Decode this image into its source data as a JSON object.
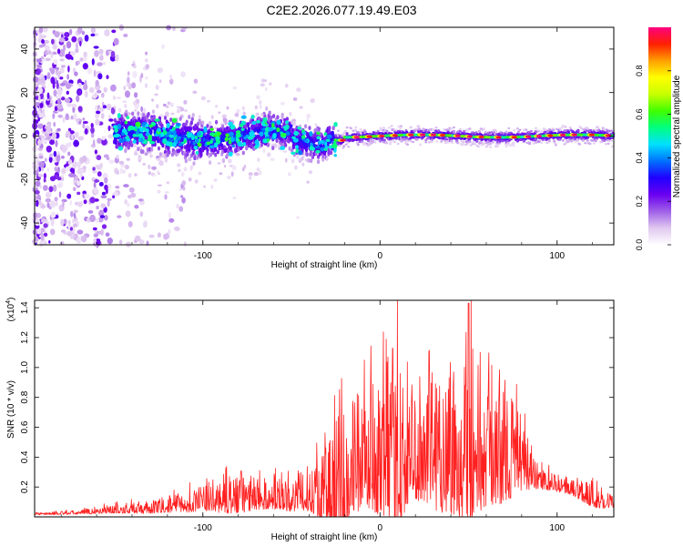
{
  "title": "C2E2.2026.077.19.49.E03",
  "chart_data": [
    {
      "type": "heatmap",
      "title": "C2E2.2026.077.19.49.E03",
      "xlabel": "Height of straight line (km)",
      "ylabel": "Frequency (Hz)",
      "xlim": [
        -195,
        132
      ],
      "ylim": [
        -50,
        50
      ],
      "x_ticks": [
        -100,
        0,
        100
      ],
      "x_tick_labels": [
        "-100",
        "0",
        "100"
      ],
      "y_ticks": [
        -40,
        -20,
        0,
        20,
        40
      ],
      "y_tick_labels": [
        "-40",
        "-20",
        "0",
        "20",
        "40"
      ],
      "colorbar": {
        "label": "Normalized spectral amplitude",
        "range": [
          0,
          1
        ],
        "ticks": [
          0.0,
          0.2,
          0.4,
          0.6,
          0.8
        ],
        "tick_labels": [
          "0.0",
          "0.2",
          "0.4",
          "0.6",
          "0.8"
        ],
        "colors": [
          "#ffffff",
          "#e0c8f0",
          "#a060e8",
          "#6a00f0",
          "#2000ff",
          "#0070ff",
          "#00e0ff",
          "#00ff80",
          "#40ff00",
          "#c8ff00",
          "#ffff00",
          "#ffa000",
          "#ff2000",
          "#ff0080"
        ]
      },
      "description_features": {
        "noise_region_x": [
          -195,
          -150
        ],
        "band_center_hz": 0,
        "band_halfwidth_near_x0_hz": 2,
        "peak_band_x": [
          -25,
          132
        ]
      }
    },
    {
      "type": "line",
      "title": "",
      "xlabel": "Height of straight line (km)",
      "ylabel": "SNR (10 * v/v)",
      "y_scale_label": "(x10",
      "y_scale_exponent": "4",
      "y_scale_suffix": ")",
      "xlim": [
        -195,
        132
      ],
      "ylim": [
        0,
        1.45
      ],
      "x_ticks": [
        -100,
        0,
        100
      ],
      "x_tick_labels": [
        "-100",
        "0",
        "100"
      ],
      "y_ticks": [
        0.2,
        0.4,
        0.6,
        0.8,
        1.0,
        1.2,
        1.4
      ],
      "y_tick_labels": [
        "0.2",
        "0.4",
        "0.6",
        "0.8",
        "1.0",
        "1.2",
        "1.4"
      ],
      "line_color": "#ff2020",
      "envelope": {
        "x": [
          -195,
          -170,
          -150,
          -130,
          -120,
          -110,
          -100,
          -90,
          -80,
          -70,
          -60,
          -50,
          -40,
          -30,
          -25,
          -20,
          -10,
          0,
          10,
          20,
          30,
          40,
          50,
          55,
          60,
          70,
          80,
          90,
          100,
          110,
          120,
          125,
          132
        ],
        "base": [
          0.02,
          0.03,
          0.05,
          0.06,
          0.08,
          0.09,
          0.12,
          0.14,
          0.16,
          0.15,
          0.14,
          0.15,
          0.18,
          0.22,
          0.3,
          0.35,
          0.4,
          0.45,
          0.5,
          0.5,
          0.55,
          0.55,
          0.55,
          0.55,
          0.55,
          0.5,
          0.4,
          0.25,
          0.22,
          0.2,
          0.16,
          0.12,
          0.1
        ],
        "amp": [
          0.01,
          0.02,
          0.04,
          0.06,
          0.08,
          0.1,
          0.12,
          0.18,
          0.22,
          0.16,
          0.14,
          0.18,
          0.22,
          0.4,
          0.9,
          0.75,
          0.5,
          0.7,
          0.9,
          0.6,
          0.8,
          0.85,
          0.9,
          0.88,
          0.75,
          0.65,
          0.35,
          0.1,
          0.08,
          0.1,
          0.16,
          0.1,
          0.06
        ]
      },
      "peak_approx": {
        "x": 50,
        "y": 1.43
      }
    }
  ]
}
